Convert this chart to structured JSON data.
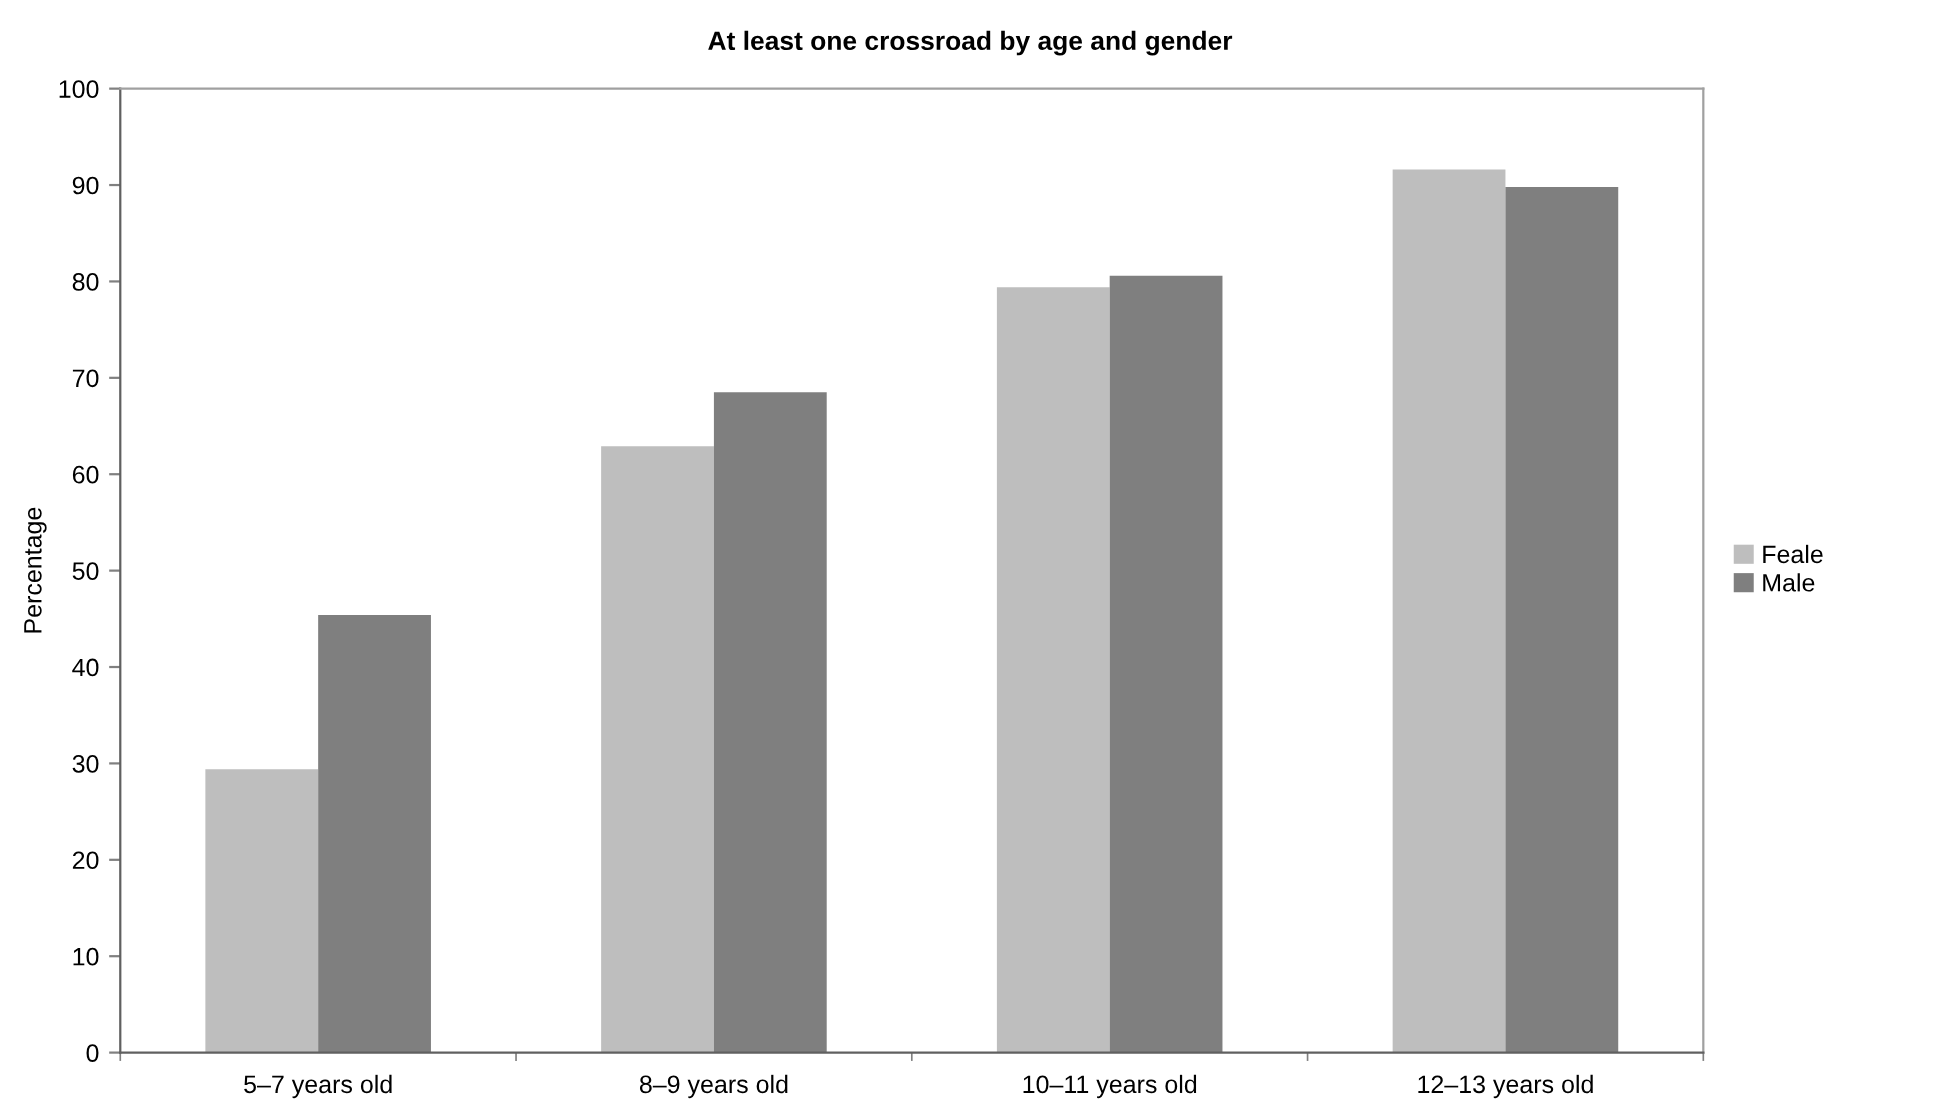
{
  "chart_data": {
    "type": "bar",
    "title": "At least one crossroad by age and gender",
    "ylabel": "Percentage",
    "categories": [
      "5–7 years old",
      "8–9 years old",
      "10–11 years old",
      "12–13 years old"
    ],
    "series": [
      {
        "name": "Feale",
        "color": "#bebebe",
        "values": [
          29.4,
          62.9,
          79.4,
          91.6
        ]
      },
      {
        "name": "Male",
        "color": "#7f7f7f",
        "values": [
          45.4,
          68.5,
          80.6,
          89.8
        ]
      }
    ],
    "ylim": [
      0,
      100
    ],
    "yticks": [
      0,
      10,
      20,
      30,
      40,
      50,
      60,
      70,
      80,
      90,
      100
    ],
    "grid": false,
    "legend": "right"
  }
}
